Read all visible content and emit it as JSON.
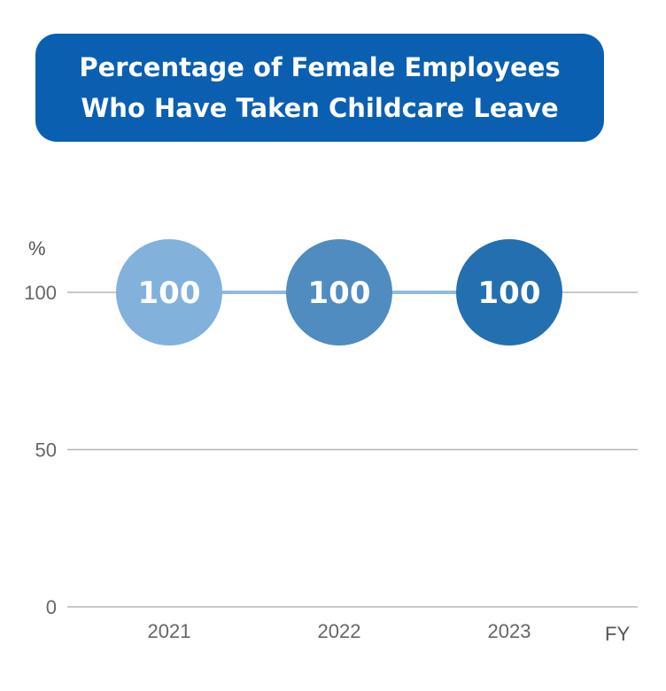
{
  "title_lines": [
    "Percentage of Female Employees",
    "Who Have Taken Childcare Leave"
  ],
  "chart_data": {
    "type": "line",
    "title": "Percentage of Female Employees Who Have Taken Childcare Leave",
    "categories": [
      "2021",
      "2022",
      "2023"
    ],
    "values": [
      100,
      100,
      100
    ],
    "data_labels": [
      "100",
      "100",
      "100"
    ],
    "y_unit": "%",
    "x_unit": "FY",
    "yticks": [
      "0",
      "50",
      "100"
    ],
    "ylim": [
      0,
      100
    ],
    "grid": true,
    "colors": {
      "title_bg": "#0a5fb0",
      "line": "#8fb9de",
      "grid": "#b5b5b5",
      "points": [
        "#82b1dc",
        "#518cc0",
        "#246fb0"
      ]
    }
  }
}
